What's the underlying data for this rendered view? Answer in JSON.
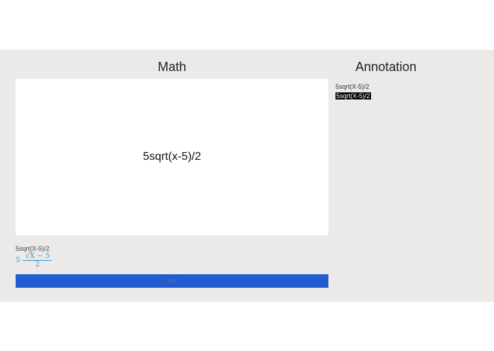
{
  "math": {
    "heading": "Math",
    "preview": "5sqrt(x-5)/2",
    "source": "5sqrt(X-5)/2",
    "rendered": {
      "coef": "5",
      "numerator": "√X − 5",
      "denominator": "2"
    },
    "edit_label": "Edit"
  },
  "annotation": {
    "heading": "Annotation",
    "items": [
      "5sqrt(X-5)/2",
      "5sqrt(X-5)/2"
    ]
  },
  "colors": {
    "accent": "#225dd0",
    "math": "#3a9ad9"
  }
}
